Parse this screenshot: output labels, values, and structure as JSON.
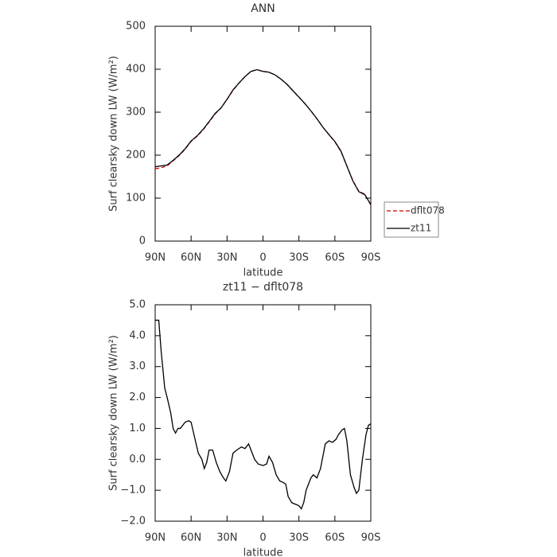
{
  "chart_data": [
    {
      "type": "line",
      "title": "ANN",
      "xlabel": "latitude",
      "ylabel": "Surf clearsky down LW (W/m²)",
      "x": [
        90,
        85,
        80,
        75,
        70,
        65,
        60,
        55,
        50,
        45,
        40,
        35,
        30,
        25,
        20,
        15,
        10,
        5,
        0,
        -5,
        -10,
        -15,
        -20,
        -25,
        -30,
        -35,
        -40,
        -45,
        -50,
        -55,
        -60,
        -65,
        -70,
        -75,
        -80,
        -85,
        -90
      ],
      "series": [
        {
          "name": "dflt078",
          "color": "#cc0000",
          "dash": true,
          "values": [
            168,
            171,
            175,
            187,
            199,
            214,
            232,
            244,
            259,
            277,
            296,
            310,
            330,
            351,
            368,
            383,
            395,
            399,
            395,
            393,
            387,
            377,
            365,
            350,
            335,
            320,
            303,
            285,
            265,
            248,
            231,
            209,
            175,
            141,
            116,
            109,
            84
          ]
        },
        {
          "name": "zt11",
          "color": "#000000",
          "dash": false,
          "values": [
            173,
            175,
            177,
            188,
            200,
            215,
            233,
            245,
            260,
            278,
            297,
            310,
            330,
            352,
            368,
            383,
            395,
            399,
            395,
            393,
            387,
            377,
            365,
            350,
            335,
            320,
            303,
            285,
            265,
            248,
            232,
            210,
            175,
            140,
            115,
            108,
            85
          ]
        }
      ],
      "xlim": [
        90,
        -90
      ],
      "xticks": [
        {
          "value": 90,
          "label": "90N"
        },
        {
          "value": 60,
          "label": "60N"
        },
        {
          "value": 30,
          "label": "30N"
        },
        0,
        {
          "value": -30,
          "label": "30S"
        },
        {
          "value": -60,
          "label": "60S"
        },
        {
          "value": -90,
          "label": "90S"
        }
      ],
      "ylim": [
        0,
        500
      ],
      "yticks": [
        0,
        100,
        200,
        300,
        400,
        500
      ],
      "legend": "outside right"
    },
    {
      "type": "line",
      "title": "zt11 − dflt078",
      "xlabel": "latitude",
      "ylabel": "Surf clearsky down LW (W/m²)",
      "x": [
        90,
        87,
        85,
        82,
        80,
        77,
        75,
        73,
        71,
        69,
        65,
        62,
        60,
        57,
        54,
        51,
        49,
        47,
        45,
        42,
        39,
        36,
        33,
        31,
        28,
        25,
        22,
        18,
        15,
        12,
        10,
        7,
        4,
        0,
        -3,
        -5,
        -8,
        -11,
        -14,
        -17,
        -19,
        -21,
        -24,
        -27,
        -30,
        -32,
        -34,
        -36,
        -38,
        -40,
        -42,
        -45,
        -48,
        -52,
        -55,
        -58,
        -61,
        -63,
        -66,
        -68,
        -70,
        -73,
        -76,
        -78,
        -80,
        -83,
        -86,
        -88,
        -90
      ],
      "values": [
        4.5,
        4.5,
        3.5,
        2.3,
        2.0,
        1.5,
        1.0,
        0.85,
        1.0,
        1.0,
        1.2,
        1.25,
        1.2,
        0.7,
        0.2,
        0.0,
        -0.3,
        -0.1,
        0.3,
        0.3,
        -0.1,
        -0.4,
        -0.6,
        -0.7,
        -0.4,
        0.2,
        0.3,
        0.4,
        0.35,
        0.5,
        0.3,
        0.0,
        -0.15,
        -0.2,
        -0.15,
        0.1,
        -0.1,
        -0.5,
        -0.7,
        -0.75,
        -0.8,
        -1.2,
        -1.4,
        -1.45,
        -1.5,
        -1.6,
        -1.4,
        -1.0,
        -0.8,
        -0.6,
        -0.5,
        -0.6,
        -0.3,
        0.5,
        0.6,
        0.55,
        0.65,
        0.8,
        0.95,
        1.0,
        0.6,
        -0.5,
        -0.9,
        -1.1,
        -1.0,
        0.0,
        0.8,
        1.1,
        1.15
      ],
      "color": "#000000",
      "xlim": [
        90,
        -90
      ],
      "xticks": [
        {
          "value": 90,
          "label": "90N"
        },
        {
          "value": 60,
          "label": "60N"
        },
        {
          "value": 30,
          "label": "30N"
        },
        0,
        {
          "value": -30,
          "label": "30S"
        },
        {
          "value": -60,
          "label": "60S"
        },
        {
          "value": -90,
          "label": "90S"
        }
      ],
      "ylim": [
        -2,
        5
      ],
      "yticks": [
        {
          "value": -2,
          "label": "−2.0"
        },
        {
          "value": -1,
          "label": "−1.0"
        },
        {
          "value": 0,
          "label": "0.0"
        },
        {
          "value": 1,
          "label": "1.0"
        },
        {
          "value": 2,
          "label": "2.0"
        },
        {
          "value": 3,
          "label": "3.0"
        },
        {
          "value": 4,
          "label": "4.0"
        },
        {
          "value": 5,
          "label": "5.0"
        }
      ]
    }
  ]
}
